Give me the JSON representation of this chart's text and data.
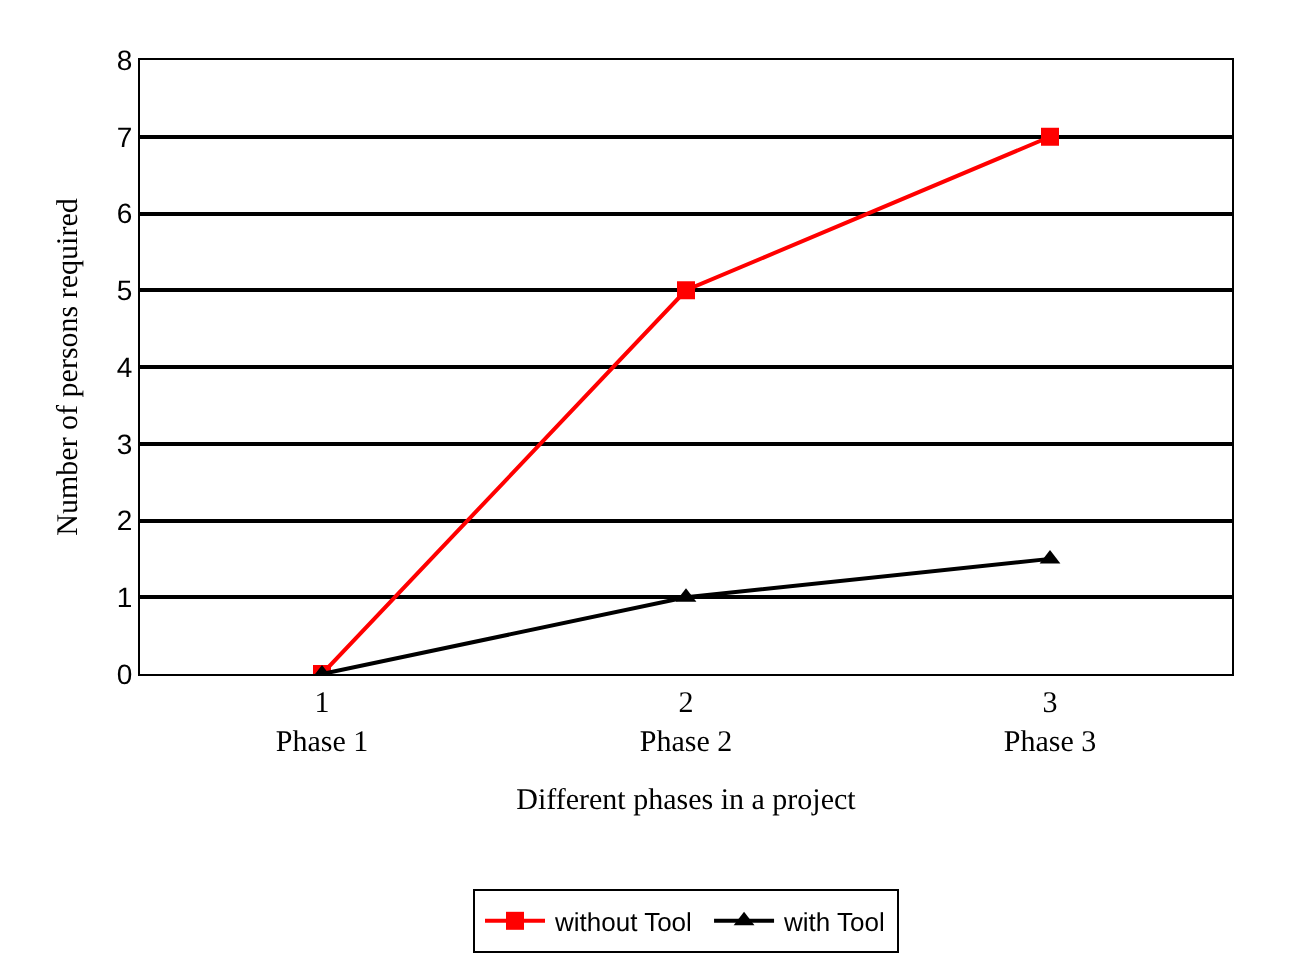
{
  "chart_data": {
    "type": "line",
    "xlabel": "Different phases in a project",
    "ylabel": "Number of persons required",
    "categories": [
      "1\nPhase 1",
      "2\nPhase 2",
      "3\nPhase 3"
    ],
    "series": [
      {
        "name": "without Tool",
        "color": "#ff0000",
        "values": [
          0,
          5,
          7
        ],
        "marker": "square"
      },
      {
        "name": "with Tool",
        "color": "#000000",
        "values": [
          0,
          1,
          1.5
        ],
        "marker": "triangle"
      }
    ],
    "ylim": [
      0,
      8
    ],
    "yticks": [
      0,
      1,
      2,
      3,
      4,
      5,
      6,
      7,
      8
    ],
    "grid": "y",
    "legend": "bottom",
    "line_style": "solid"
  }
}
